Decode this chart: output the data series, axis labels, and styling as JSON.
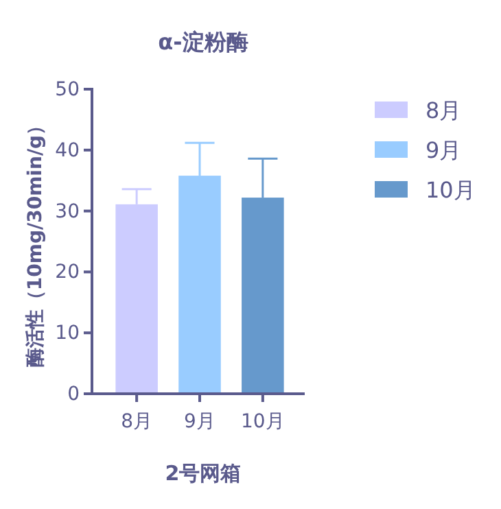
{
  "chart_data": {
    "type": "bar",
    "title": "α-淀粉酶",
    "xlabel": "2号网箱",
    "ylabel": "酶活性（10mg/30min/g）",
    "categories": [
      "8月",
      "9月",
      "10月"
    ],
    "series": [
      {
        "name": "8月",
        "color": "#ccccff",
        "values": [
          31.1,
          null,
          null
        ],
        "errors": [
          [
            31.1,
            33.6
          ],
          null,
          null
        ]
      },
      {
        "name": "9月",
        "color": "#99ccff",
        "values": [
          null,
          35.8,
          null
        ],
        "errors": [
          null,
          [
            35.8,
            41.2
          ],
          null
        ]
      },
      {
        "name": "10月",
        "color": "#6699cc",
        "values": [
          null,
          null,
          32.2
        ],
        "errors": [
          null,
          null,
          [
            32.2,
            38.6
          ]
        ]
      }
    ],
    "ylim": [
      0,
      50
    ],
    "yticks": [
      0,
      10,
      20,
      30,
      40,
      50
    ],
    "grid": false,
    "legend": "right"
  }
}
